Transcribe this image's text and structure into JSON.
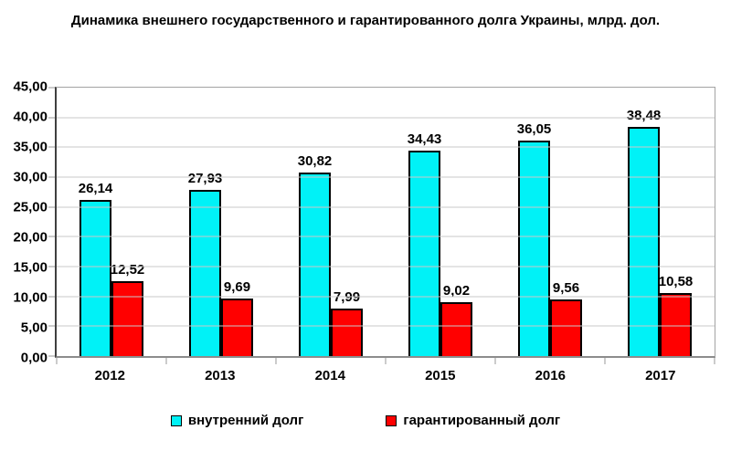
{
  "chart_data": {
    "type": "bar",
    "title": "Динамика внешнего государственного и гарантированного долга Украины, млрд. дол.",
    "categories": [
      "2012",
      "2013",
      "2014",
      "2015",
      "2016",
      "2017"
    ],
    "series": [
      {
        "name": "внутренний долг",
        "color": "#00F2F7",
        "border_color": "#000000",
        "values": [
          26.14,
          27.93,
          30.82,
          34.43,
          36.05,
          38.48
        ]
      },
      {
        "name": "гарантированный долг",
        "color": "#FF0000",
        "border_color": "#000000",
        "values": [
          12.52,
          9.69,
          7.99,
          9.02,
          9.56,
          10.58
        ]
      }
    ],
    "ylim": [
      0,
      45
    ],
    "yticks": [
      45,
      40,
      35,
      30,
      25,
      20,
      15,
      10,
      5,
      0
    ],
    "ytick_labels": [
      "45,00",
      "40,00",
      "35,00",
      "30,00",
      "25,00",
      "20,00",
      "15,00",
      "10,00",
      "5,00",
      "0,00"
    ],
    "value_labels": [
      [
        "26,14",
        "27,93",
        "30,82",
        "34,43",
        "36,05",
        "38,48"
      ],
      [
        "12,52",
        "9,69",
        "7,99",
        "9,02",
        "9,56",
        "10,58"
      ]
    ],
    "decimal_separator": ",",
    "value_label_decimals": 2,
    "grid": true,
    "legend_position": "bottom",
    "plot_background": "#ffffff",
    "gridline_color": "#c8c8c8"
  }
}
